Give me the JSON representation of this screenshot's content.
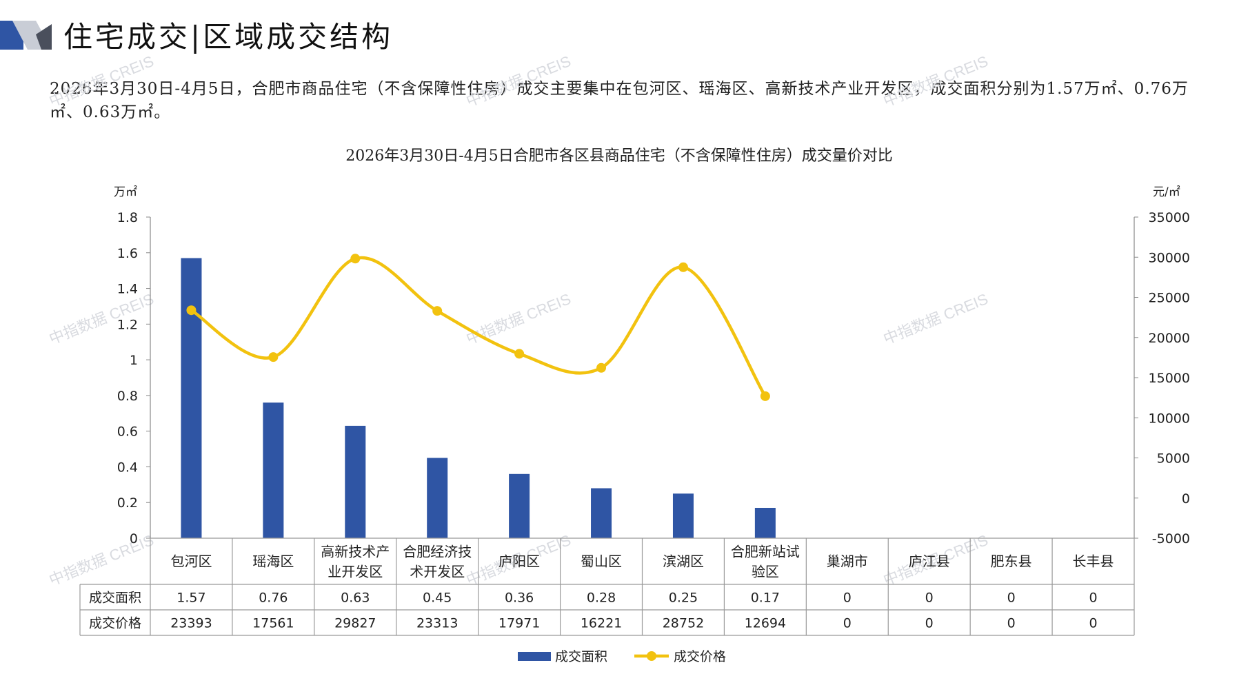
{
  "header": {
    "title": "住宅成交|区域成交结构"
  },
  "summary": {
    "text": "2026年3月30日-4月5日，合肥市商品住宅（不含保障性住房）成交主要集中在包河区、瑶海区、高新技术产业开发区，成交面积分别为1.57万㎡、0.76万㎡、0.63万㎡。"
  },
  "watermark": {
    "text": "中指数据 CREIS"
  },
  "chart_data": {
    "type": "bar",
    "title": "2026年3月30日-4月5日合肥市各区县商品住宅（不含保障性住房）成交量价对比",
    "left_unit": "万㎡",
    "right_unit": "元/㎡",
    "categories": [
      [
        "包河区"
      ],
      [
        "瑶海区"
      ],
      [
        "高新技术产",
        "业开发区"
      ],
      [
        "合肥经济技",
        "术开发区"
      ],
      [
        "庐阳区"
      ],
      [
        "蜀山区"
      ],
      [
        "滨湖区"
      ],
      [
        "合肥新站试",
        "验区"
      ],
      [
        "巢湖市"
      ],
      [
        "庐江县"
      ],
      [
        "肥东县"
      ],
      [
        "长丰县"
      ]
    ],
    "left_ticks": [
      "0",
      "0.2",
      "0.4",
      "0.6",
      "0.8",
      "1",
      "1.2",
      "1.4",
      "1.6",
      "1.8"
    ],
    "right_ticks": [
      "-5000",
      "0",
      "5000",
      "10000",
      "15000",
      "20000",
      "25000",
      "30000",
      "35000"
    ],
    "left_range": [
      0,
      1.8
    ],
    "right_range": [
      -5000,
      35000
    ],
    "series": [
      {
        "name": "成交面积",
        "kind": "bar",
        "axis": "left",
        "color": "#2f55a4",
        "values": [
          1.57,
          0.76,
          0.63,
          0.45,
          0.36,
          0.28,
          0.25,
          0.17,
          0,
          0,
          0,
          0
        ],
        "labels": [
          "1.57",
          "0.76",
          "0.63",
          "0.45",
          "0.36",
          "0.28",
          "0.25",
          "0.17",
          "0",
          "0",
          "0",
          "0"
        ]
      },
      {
        "name": "成交价格",
        "kind": "line",
        "axis": "right",
        "color": "#f2c20f",
        "values": [
          23393,
          17561,
          29827,
          23313,
          17971,
          16221,
          28752,
          12694,
          0,
          0,
          0,
          0
        ],
        "labels": [
          "23393",
          "17561",
          "29827",
          "23313",
          "17971",
          "16221",
          "28752",
          "12694",
          "0",
          "0",
          "0",
          "0"
        ],
        "plotted_count": 8
      }
    ],
    "legend": "bottom",
    "grid": false
  }
}
